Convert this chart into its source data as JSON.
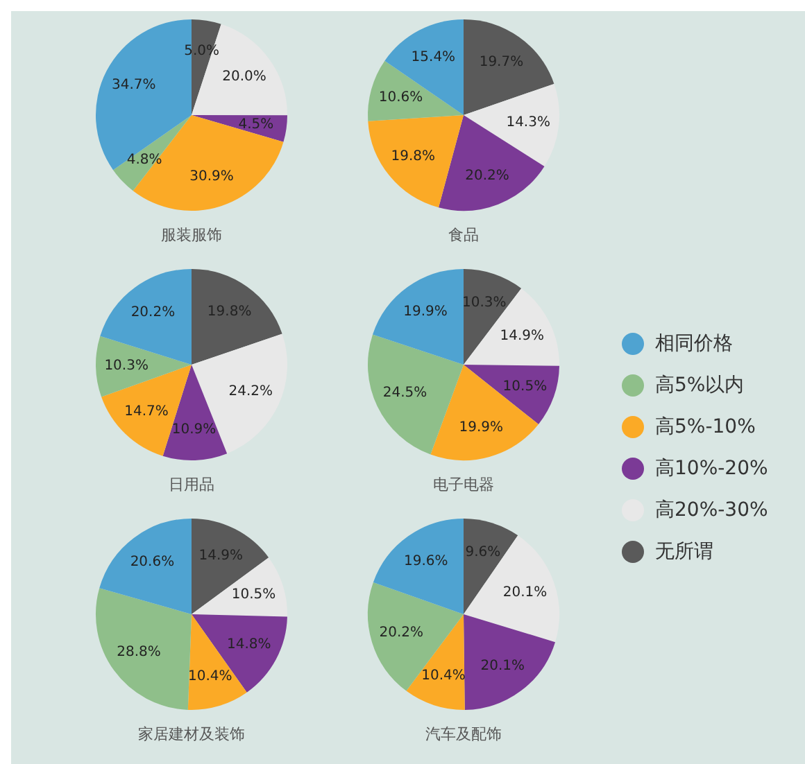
{
  "chart_data": [
    {
      "type": "pie",
      "title": "服装服饰",
      "categories": [
        "相同价格",
        "高5%以内",
        "高5%-10%",
        "高10%-20%",
        "高20%-30%",
        "无所谓"
      ],
      "values": [
        34.7,
        4.8,
        30.9,
        4.5,
        20.0,
        5.0
      ],
      "value_labels": [
        "34.7%",
        "4.8%",
        "30.9%",
        "4.5%",
        "20.0%",
        "5.0%"
      ],
      "colors": [
        "#4fa3d1",
        "#8fbf8a",
        "#fbaa26",
        "#7b3a96",
        "#e8e8e8",
        "#5a5a5a"
      ],
      "legend": "right"
    },
    {
      "type": "pie",
      "title": "食品",
      "categories": [
        null,
        null,
        null,
        null,
        null,
        null
      ],
      "values": [
        15.4,
        10.6,
        19.8,
        20.2,
        14.3,
        19.7
      ],
      "value_labels": [
        "15.4%",
        "10.6%",
        "19.8%",
        "20.2%",
        "14.3%",
        "19.7%"
      ],
      "colors": [
        "#4fa3d1",
        "#8fbf8a",
        "#fbaa26",
        "#7b3a96",
        "#e8e8e8",
        "#5a5a5a"
      ]
    },
    {
      "type": "pie",
      "title": "日用品",
      "categories": [
        null,
        null,
        null,
        null,
        null,
        null
      ],
      "values": [
        20.2,
        10.3,
        14.7,
        10.9,
        24.2,
        19.8
      ],
      "value_labels": [
        "20.2%",
        "10.3%",
        "14.7%",
        "10.9%",
        "24.2%",
        "19.8%"
      ],
      "colors": [
        "#4fa3d1",
        "#8fbf8a",
        "#fbaa26",
        "#7b3a96",
        "#e8e8e8",
        "#5a5a5a"
      ]
    },
    {
      "type": "pie",
      "title": "电子电器",
      "categories": [
        null,
        null,
        null,
        null,
        null,
        null
      ],
      "values": [
        19.9,
        24.5,
        19.9,
        10.5,
        14.9,
        10.3
      ],
      "value_labels": [
        "19.9%",
        "24.5%",
        "19.9%",
        "10.5%",
        "14.9%",
        "10.3%"
      ],
      "colors": [
        "#4fa3d1",
        "#8fbf8a",
        "#fbaa26",
        "#7b3a96",
        "#e8e8e8",
        "#5a5a5a"
      ]
    },
    {
      "type": "pie",
      "title": "家居建材及装饰",
      "categories": [
        null,
        null,
        null,
        null,
        null,
        null
      ],
      "values": [
        20.6,
        28.8,
        10.4,
        14.8,
        10.5,
        14.9
      ],
      "value_labels": [
        "20.6%",
        "28.8%",
        "10.4%",
        "14.8%",
        "10.5%",
        "14.9%"
      ],
      "colors": [
        "#4fa3d1",
        "#8fbf8a",
        "#fbaa26",
        "#7b3a96",
        "#e8e8e8",
        "#5a5a5a"
      ]
    },
    {
      "type": "pie",
      "title": "汽车及配饰",
      "categories": [
        null,
        null,
        null,
        null,
        null,
        null
      ],
      "values": [
        19.6,
        20.2,
        10.4,
        20.1,
        20.1,
        9.6
      ],
      "value_labels": [
        "19.6%",
        "20.2%",
        "10.4%",
        "20.1%",
        "20.1%",
        "9.6%"
      ],
      "colors": [
        "#4fa3d1",
        "#8fbf8a",
        "#fbaa26",
        "#7b3a96",
        "#e8e8e8",
        "#5a5a5a"
      ]
    }
  ]
}
